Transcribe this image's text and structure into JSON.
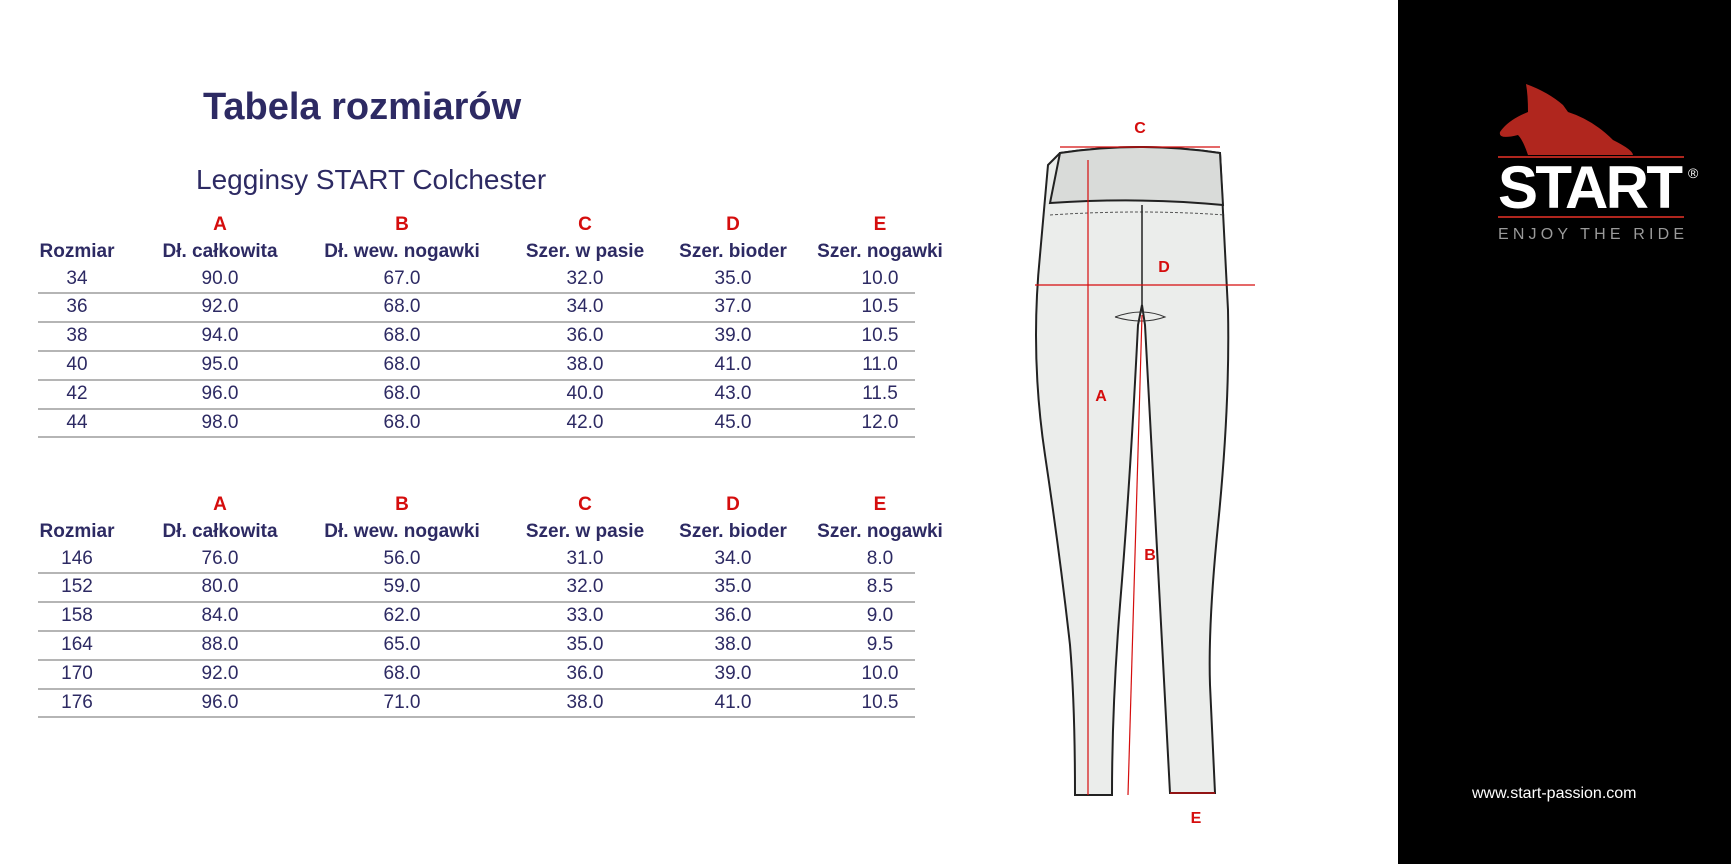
{
  "title": "Tabela rozmiarów",
  "subtitle": "Legginsy START Colchester",
  "letters": [
    "",
    "A",
    "B",
    "C",
    "D",
    "E"
  ],
  "headers": [
    "Rozmiar",
    "Dł. całkowita",
    "Dł. wew. nogawki",
    "Szer. w pasie",
    "Szer. bioder",
    "Szer. nogawki"
  ],
  "table1": [
    [
      "34",
      "90.0",
      "67.0",
      "32.0",
      "35.0",
      "10.0"
    ],
    [
      "36",
      "92.0",
      "68.0",
      "34.0",
      "37.0",
      "10.5"
    ],
    [
      "38",
      "94.0",
      "68.0",
      "36.0",
      "39.0",
      "10.5"
    ],
    [
      "40",
      "95.0",
      "68.0",
      "38.0",
      "41.0",
      "11.0"
    ],
    [
      "42",
      "96.0",
      "68.0",
      "40.0",
      "43.0",
      "11.5"
    ],
    [
      "44",
      "98.0",
      "68.0",
      "42.0",
      "45.0",
      "12.0"
    ]
  ],
  "table2": [
    [
      "146",
      "76.0",
      "56.0",
      "31.0",
      "34.0",
      "8.0"
    ],
    [
      "152",
      "80.0",
      "59.0",
      "32.0",
      "35.0",
      "8.5"
    ],
    [
      "158",
      "84.0",
      "62.0",
      "33.0",
      "36.0",
      "9.0"
    ],
    [
      "164",
      "88.0",
      "65.0",
      "35.0",
      "38.0",
      "9.5"
    ],
    [
      "170",
      "92.0",
      "68.0",
      "36.0",
      "39.0",
      "10.0"
    ],
    [
      "176",
      "96.0",
      "71.0",
      "38.0",
      "41.0",
      "10.5"
    ]
  ],
  "diagram_labels": {
    "a": "A",
    "b": "B",
    "c": "C",
    "d": "D",
    "e": "E"
  },
  "brand": {
    "name": "START",
    "registered": "®",
    "tagline": "ENJOY THE RIDE",
    "url": "www.start-passion.com"
  },
  "colors": {
    "text": "#2d2a63",
    "accent": "#d50d0d",
    "logo_red": "#b0261e",
    "panel": "#000000"
  }
}
